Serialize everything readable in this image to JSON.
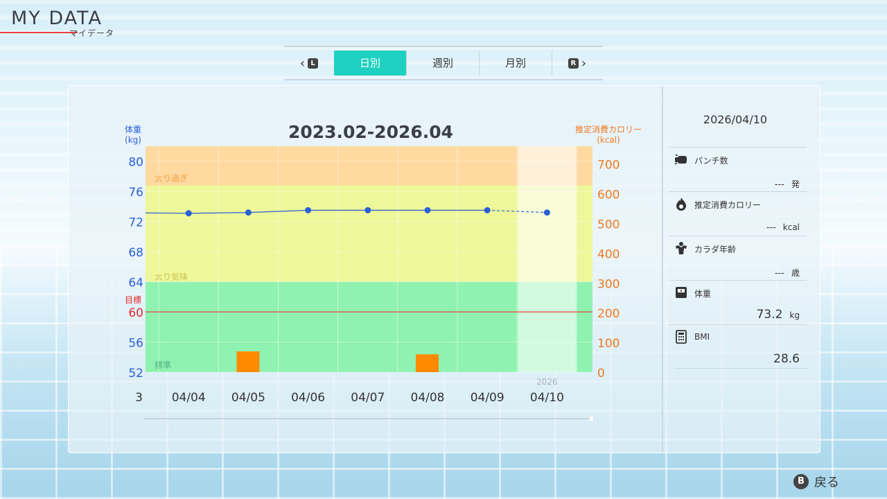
{
  "header": {
    "title": "MY DATA",
    "subtitle": "マイデータ"
  },
  "tabs": {
    "left_button": "L",
    "right_button": "R",
    "items": [
      {
        "label": "日別",
        "active": true
      },
      {
        "label": "週別",
        "active": false
      },
      {
        "label": "月別",
        "active": false
      }
    ],
    "active_color": "#1ed0bf"
  },
  "chart_data": {
    "type": "line",
    "title": "2023.02-2026.04",
    "y_left_label": "体重\n(kg)",
    "y_right_label": "推定消費カロリー\n(kcal)",
    "goal_label": "目標",
    "y_left_ticks": [
      "80",
      "76",
      "72",
      "68",
      "64",
      "60",
      "56",
      "52"
    ],
    "y_right_ticks": [
      "700",
      "600",
      "500",
      "400",
      "300",
      "200",
      "100",
      "0"
    ],
    "ylim_left": [
      52,
      82
    ],
    "ylim_right": [
      0,
      760
    ],
    "x_ticks": [
      "3",
      "04/04",
      "04/05",
      "04/06",
      "04/07",
      "04/08",
      "04/09",
      "04/10"
    ],
    "year_label": "2026",
    "zones": [
      {
        "label": "太り過ぎ",
        "from": 76.8,
        "to": 82,
        "color": "#ffd9a0"
      },
      {
        "label": "太り気味",
        "from": 64,
        "to": 76.8,
        "color": "#eef79a"
      },
      {
        "label": "標準",
        "from": 52,
        "to": 64,
        "color": "#8ff2b0"
      }
    ],
    "goal_value": 60,
    "series": [
      {
        "name": "体重",
        "axis": "left",
        "color": "#2a5fd8",
        "values": [
          null,
          73.1,
          73.2,
          73.5,
          73.5,
          73.5,
          73.5,
          73.2
        ]
      },
      {
        "name": "推定消費カロリー",
        "axis": "right",
        "type": "bar",
        "color": "#ff8a00",
        "values": [
          null,
          null,
          70,
          null,
          null,
          60,
          null,
          null
        ]
      }
    ]
  },
  "side": {
    "date": "2026/04/10",
    "rows": [
      {
        "label": "パンチ数",
        "value": "---",
        "unit": "発",
        "icon": "punch-icon"
      },
      {
        "label": "推定消費カロリー",
        "value": "---",
        "unit": "kcal",
        "icon": "flame-icon"
      },
      {
        "label": "カラダ年齢",
        "value": "---",
        "unit": "歳",
        "icon": "muscle-icon"
      },
      {
        "label": "体重",
        "value": "73.2",
        "unit": "kg",
        "icon": "scale-icon"
      },
      {
        "label": "BMI",
        "value": "28.6",
        "unit": "",
        "icon": "calculator-icon"
      }
    ]
  },
  "footer": {
    "back_button": "B",
    "back_label": "戻る"
  }
}
